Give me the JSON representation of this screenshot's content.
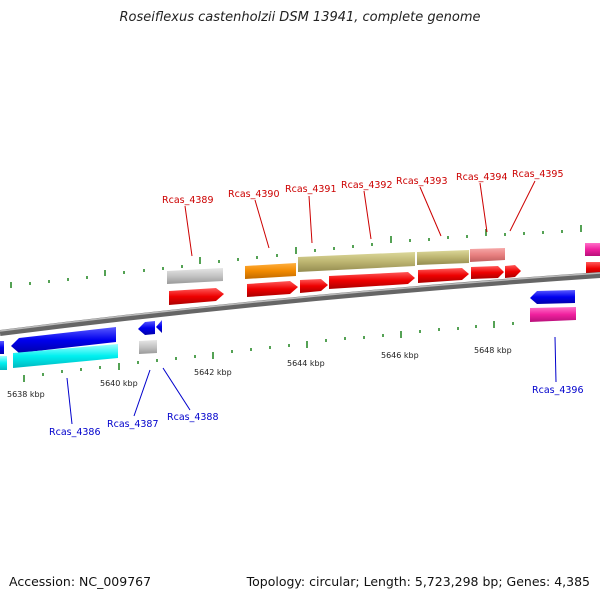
{
  "title": "Roseiflexus castenholzii DSM 13941, complete genome",
  "footer": {
    "accession": "Accession: NC_009767",
    "topology": "Topology: circular; Length: 5,723,298 bp; Genes: 4,385"
  },
  "colors": {
    "forward_label": "#cc0000",
    "reverse_label": "#0000cc",
    "backbone": "#888888",
    "tick": "#2a8a2a"
  },
  "axis": {
    "kbp_labels": [
      "5638 kbp",
      "5640 kbp",
      "5642 kbp",
      "5644 kbp",
      "5646 kbp",
      "5648 kbp"
    ]
  },
  "genes": {
    "forward": [
      "Rcas_4389",
      "Rcas_4390",
      "Rcas_4391",
      "Rcas_4392",
      "Rcas_4393",
      "Rcas_4394",
      "Rcas_4395"
    ],
    "reverse": [
      "Rcas_4386",
      "Rcas_4387",
      "Rcas_4388",
      "Rcas_4396"
    ]
  }
}
